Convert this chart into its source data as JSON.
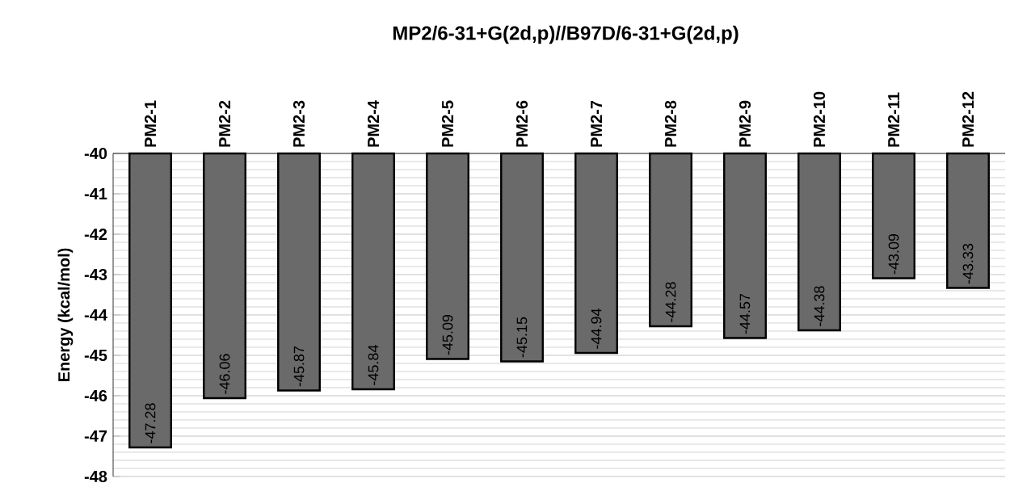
{
  "chart_data": {
    "type": "bar",
    "title": "MP2/6-31+G(2d,p)//B97D/6-31+G(2d,p)",
    "ylabel": "Energy (kcal/mol)",
    "categories": [
      "PM2-1",
      "PM2-2",
      "PM2-3",
      "PM2-4",
      "PM2-5",
      "PM2-6",
      "PM2-7",
      "PM2-8",
      "PM2-9",
      "PM2-10",
      "PM2-11",
      "PM2-12"
    ],
    "values": [
      -47.28,
      -46.06,
      -45.87,
      -45.84,
      -45.09,
      -45.15,
      -44.94,
      -44.28,
      -44.57,
      -44.38,
      -43.09,
      -43.33
    ],
    "color": "#6a6a6a",
    "ylim": [
      -48,
      -40
    ],
    "yticks": [
      -48,
      -47,
      -46,
      -45,
      -44,
      -43,
      -42,
      -41,
      -40
    ],
    "grid": "y",
    "data_labels": true
  }
}
